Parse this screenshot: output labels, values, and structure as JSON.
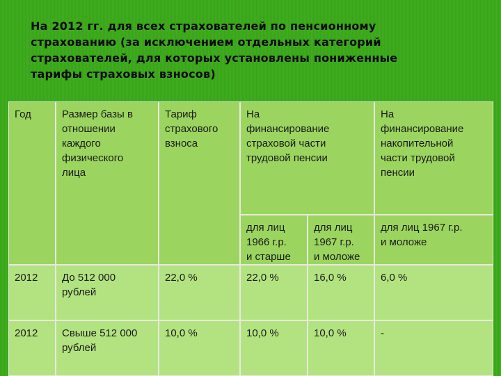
{
  "title_lines": [
    "На 2012 гг. для всех страхователей по пенсионному",
    "страхованию (за исключением отдельных категорий",
    "страхователей, для которых установлены пониженные",
    "тарифы страховых взносов)"
  ],
  "headers": {
    "year": [
      "Год"
    ],
    "base": [
      "Размер базы в",
      "отношении",
      "каждого",
      "физического",
      "лица"
    ],
    "tariff": [
      "Тариф",
      "страхового",
      "взноса"
    ],
    "insurance": [
      "На",
      "финансирование",
      "страховой части",
      "трудовой пенсии"
    ],
    "funded": [
      "На",
      "финансирование",
      "накопительной",
      "части трудовой",
      "пенсии"
    ],
    "sub_1966": [
      "для лиц",
      "1966 г.р.",
      "и старше"
    ],
    "sub_1967": [
      "для лиц",
      "1967 г.р.",
      "и моложе"
    ],
    "sub_funded": [
      "для лиц  1967 г.р.",
      "и  моложе"
    ]
  },
  "rows": [
    {
      "year": "2012",
      "base": [
        "До 512 000",
        "рублей"
      ],
      "tariff": "22,0 %",
      "ins_1966": "22,0 %",
      "ins_1967": "16,0 %",
      "funded": "6,0 %"
    },
    {
      "year": "2012",
      "base": [
        "Свыше 512 000",
        "рублей"
      ],
      "tariff": "10,0 %",
      "ins_1966": "10,0 %",
      "ins_1967": "10,0 %",
      "funded": "-"
    }
  ]
}
